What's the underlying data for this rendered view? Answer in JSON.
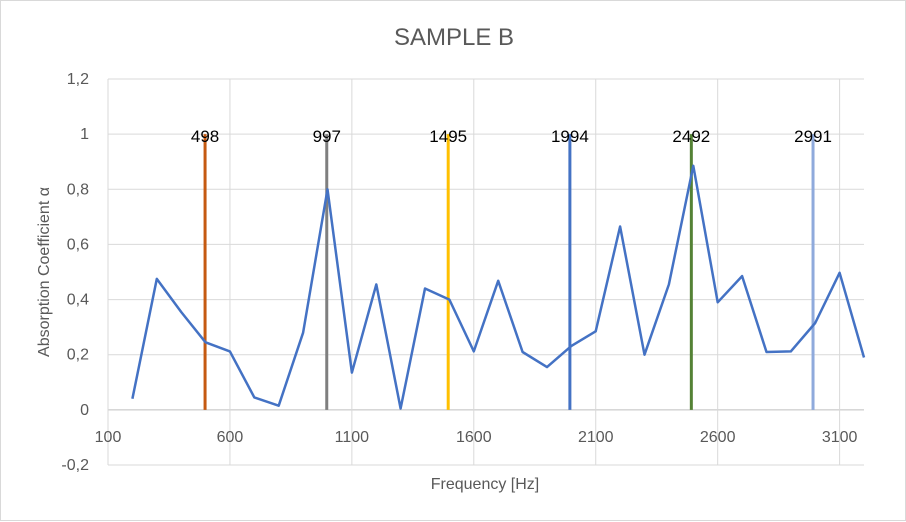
{
  "chart_data": {
    "type": "line",
    "title": "SAMPLE B",
    "xlabel": "Frequency [Hz]",
    "ylabel": "Absorption Coefficient α",
    "xlim": [
      100,
      3200
    ],
    "ylim": [
      -0.2,
      1.2
    ],
    "x_ticks": [
      100,
      600,
      1100,
      1600,
      2100,
      2600,
      3100
    ],
    "x_tick_labels": [
      "100",
      "600",
      "1100",
      "1600",
      "2100",
      "2600",
      "3100"
    ],
    "y_ticks": [
      -0.2,
      0,
      0.2,
      0.4,
      0.6,
      0.8,
      1,
      1.2
    ],
    "y_tick_labels": [
      "-0,2",
      "0",
      "0,2",
      "0,4",
      "0,6",
      "0,8",
      "1",
      "1,2"
    ],
    "grid": true,
    "series": [
      {
        "color": "#4472c4",
        "x": [
          200,
          300,
          400,
          500,
          600,
          700,
          800,
          900,
          1000,
          1100,
          1200,
          1300,
          1400,
          1500,
          1600,
          1700,
          1800,
          1900,
          2000,
          2100,
          2200,
          2300,
          2400,
          2500,
          2600,
          2700,
          2800,
          2900,
          3000,
          3100,
          3200
        ],
        "values": [
          0.04,
          0.475,
          0.355,
          0.245,
          0.212,
          0.045,
          0.015,
          0.28,
          0.8,
          0.135,
          0.455,
          0.005,
          0.44,
          0.4,
          0.212,
          0.468,
          0.21,
          0.155,
          0.232,
          0.285,
          0.665,
          0.2,
          0.455,
          0.885,
          0.39,
          0.485,
          0.21,
          0.212,
          0.315,
          0.497,
          0.19
        ]
      }
    ],
    "markers": [
      {
        "x": 498,
        "label": "498",
        "color": "#c55a11"
      },
      {
        "x": 997,
        "label": "997",
        "color": "#7f7f7f"
      },
      {
        "x": 1495,
        "label": "1495",
        "color": "#ffc000"
      },
      {
        "x": 1994,
        "label": "1994",
        "color": "#4472c4"
      },
      {
        "x": 2492,
        "label": "2492",
        "color": "#548235"
      },
      {
        "x": 2991,
        "label": "2991",
        "color": "#8faadc"
      }
    ],
    "marker_range": [
      0,
      1
    ]
  }
}
